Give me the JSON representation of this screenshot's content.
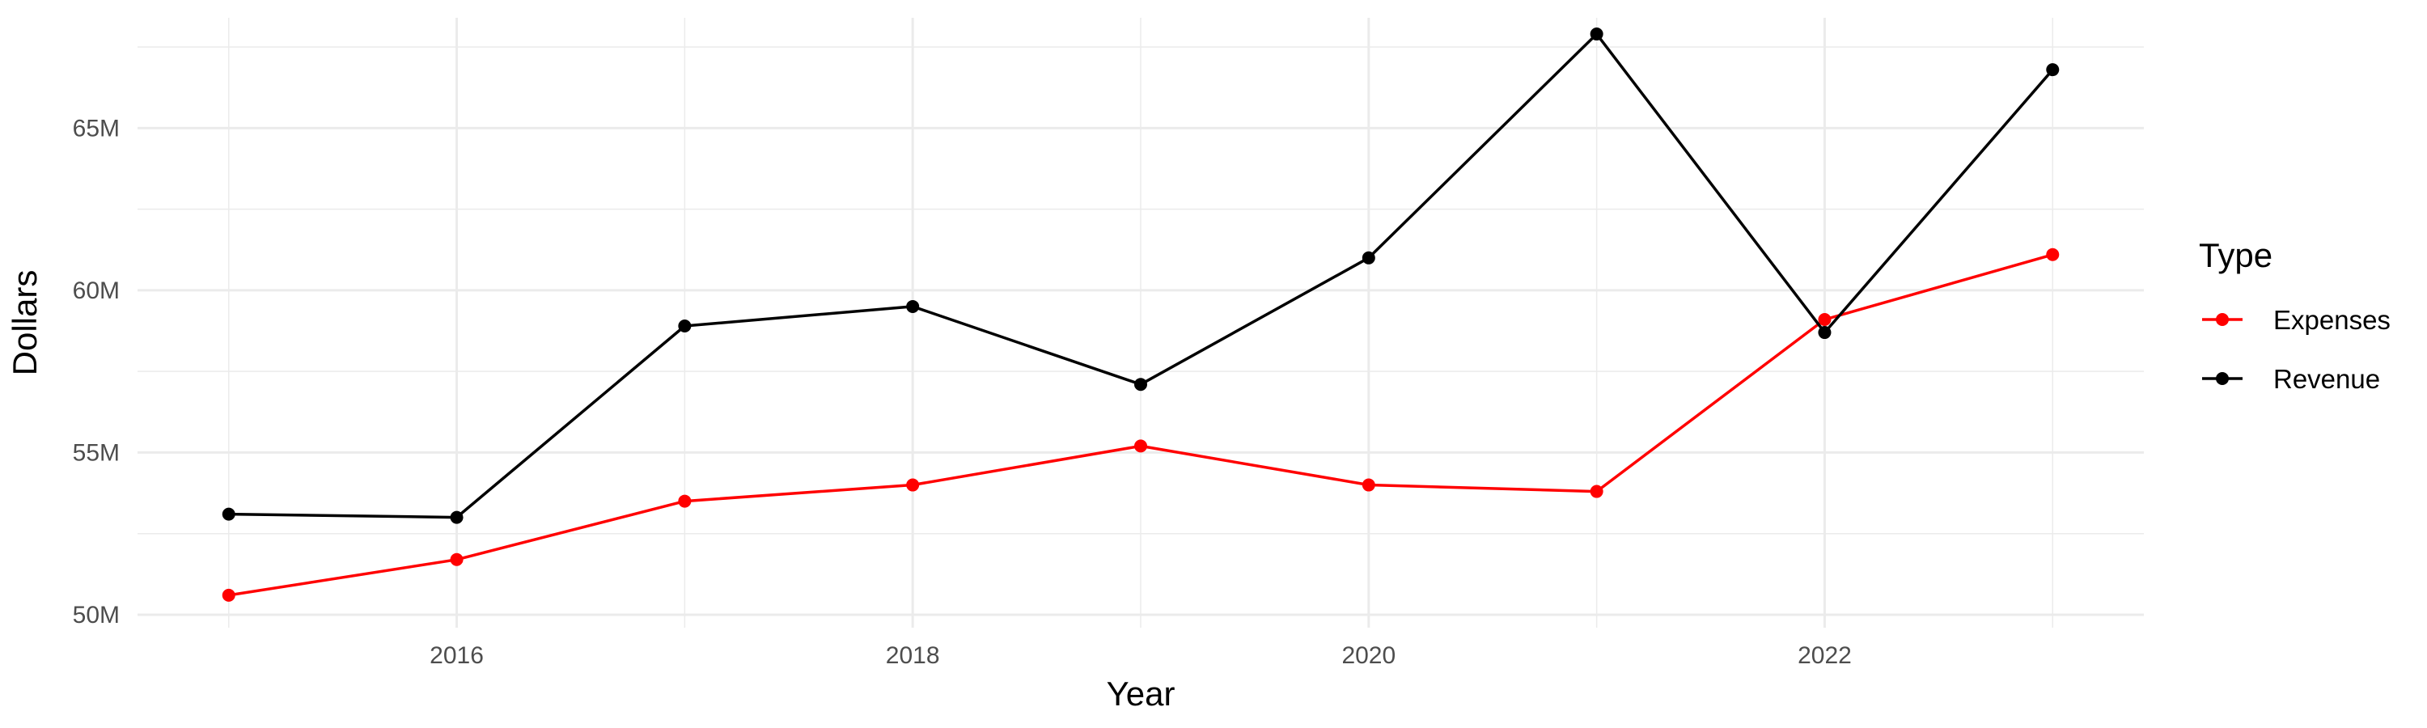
{
  "chart_data": {
    "type": "line",
    "title": "",
    "xlabel": "Year",
    "ylabel": "Dollars",
    "x": [
      2015,
      2016,
      2017,
      2018,
      2019,
      2020,
      2021,
      2022,
      2023
    ],
    "x_ticks": [
      2016,
      2018,
      2020,
      2022
    ],
    "x_tick_labels": [
      "2016",
      "2018",
      "2020",
      "2022"
    ],
    "xlim": [
      2014.6,
      2023.4
    ],
    "y_ticks": [
      50,
      55,
      60,
      65
    ],
    "y_tick_labels": [
      "50M",
      "55M",
      "60M",
      "65M"
    ],
    "ylim": [
      49.6,
      68.4
    ],
    "y_units": "millions of dollars",
    "grid": true,
    "legend": {
      "title": "Type",
      "placement": "right"
    },
    "series": [
      {
        "name": "Expenses",
        "color": "#ff0000",
        "values": [
          50.6,
          51.7,
          53.5,
          54.0,
          55.2,
          54.0,
          53.8,
          59.1,
          61.1
        ]
      },
      {
        "name": "Revenue",
        "color": "#000000",
        "values": [
          53.1,
          53.0,
          58.9,
          59.5,
          57.1,
          61.0,
          67.9,
          58.7,
          66.8
        ]
      }
    ]
  }
}
